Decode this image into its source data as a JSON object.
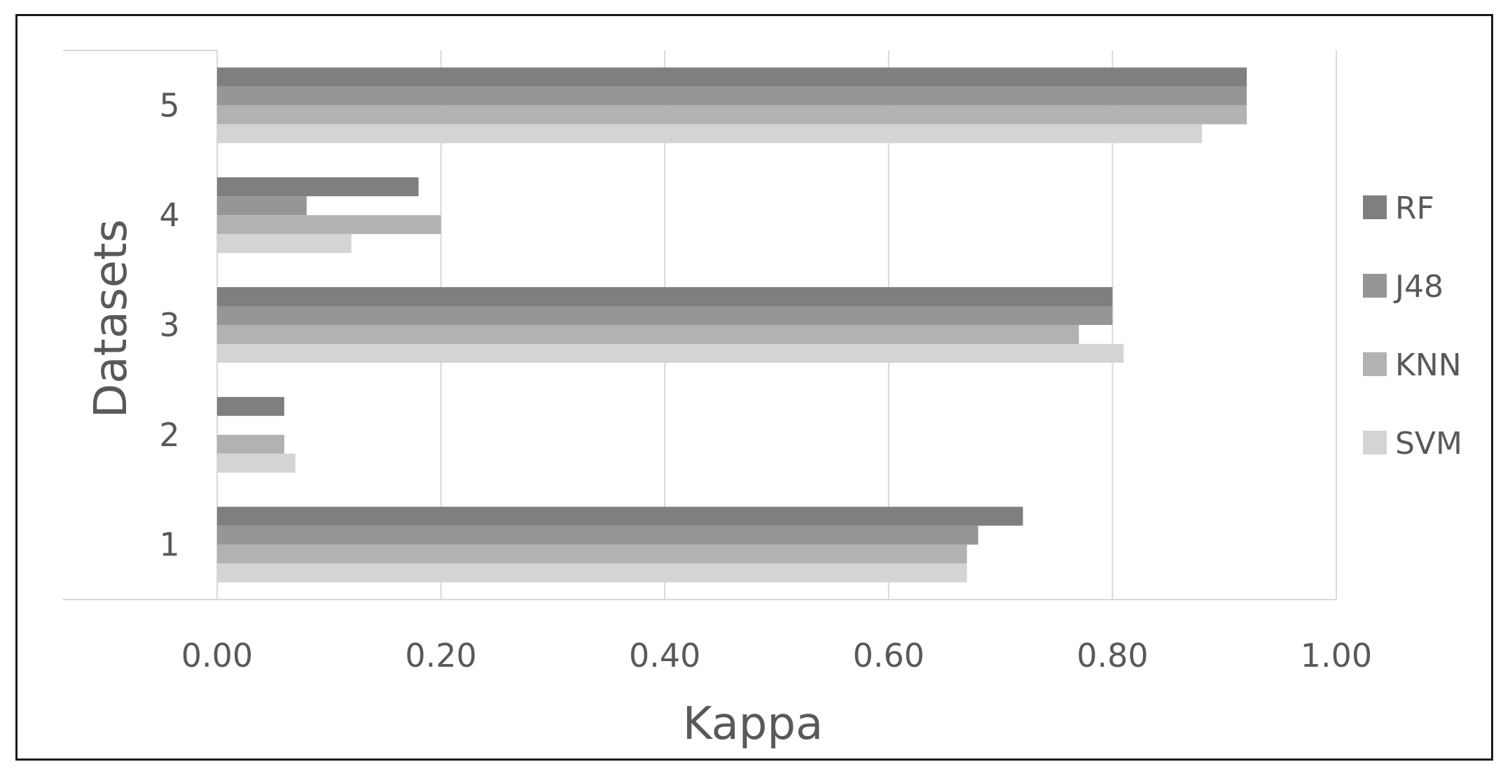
{
  "chart_data": {
    "type": "bar",
    "orientation": "horizontal",
    "title": "",
    "xlabel": "Kappa",
    "ylabel": "Datasets",
    "categories": [
      "1",
      "2",
      "3",
      "4",
      "5"
    ],
    "xlim": [
      0,
      1
    ],
    "x_ticks": [
      "0.00",
      "0.20",
      "0.40",
      "0.60",
      "0.80",
      "1.00"
    ],
    "grid": true,
    "legend_position": "right",
    "series": [
      {
        "name": "RF",
        "color": "#7f7f7f",
        "values": [
          0.72,
          0.06,
          0.8,
          0.18,
          0.92
        ]
      },
      {
        "name": "J48",
        "color": "#969696",
        "values": [
          0.68,
          0.0,
          0.8,
          0.08,
          0.92
        ]
      },
      {
        "name": "KNN",
        "color": "#b2b2b2",
        "values": [
          0.67,
          0.06,
          0.77,
          0.2,
          0.92
        ]
      },
      {
        "name": "SVM",
        "color": "#d4d4d4",
        "values": [
          0.67,
          0.07,
          0.81,
          0.12,
          0.88
        ]
      }
    ]
  }
}
